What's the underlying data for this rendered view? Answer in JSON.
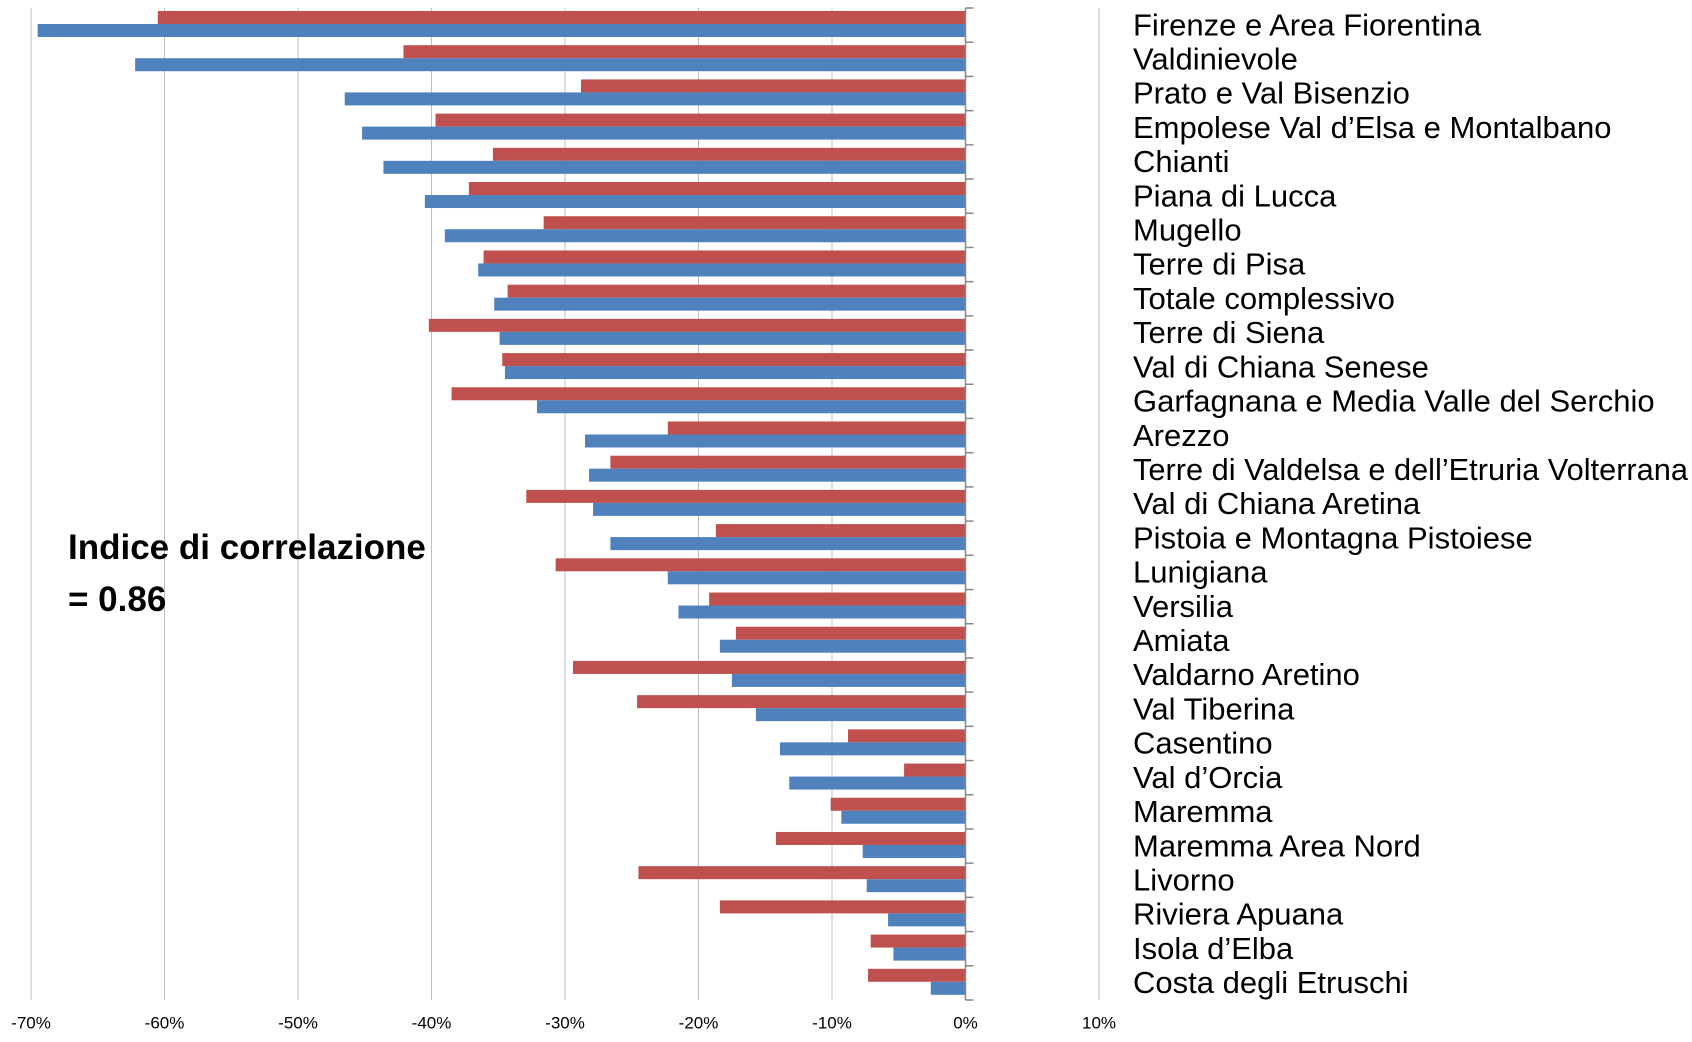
{
  "chart_data": {
    "type": "hbar",
    "annotation": "Indice di correlazione = 0.86",
    "categories": [
      "Firenze e Area Fiorentina",
      "Valdinievole",
      "Prato e Val Bisenzio",
      "Empolese Val d’Elsa e Montalbano",
      "Chianti",
      "Piana di Lucca",
      "Mugello",
      "Terre di Pisa",
      "Totale complessivo",
      "Terre di Siena",
      "Val di Chiana Senese",
      "Garfagnana e Media Valle del Serchio",
      "Arezzo",
      "Terre di Valdelsa e dell’Etruria Volterrana",
      "Val di Chiana Aretina",
      "Pistoia e Montagna Pistoiese",
      "Lunigiana",
      "Versilia",
      "Amiata",
      "Valdarno Aretino",
      "Val Tiberina",
      "Casentino",
      "Val d’Orcia",
      "Maremma",
      "Maremma Area Nord",
      "Livorno",
      "Riviera Apuana",
      "Isola d’Elba",
      "Costa degli Etruschi"
    ],
    "series": [
      {
        "color": "#c0504d",
        "values": [
          -60.5,
          -42.1,
          -28.8,
          -39.7,
          -35.4,
          -37.2,
          -31.6,
          -36.1,
          -34.3,
          -40.2,
          -34.7,
          -38.5,
          -22.3,
          -26.6,
          -32.9,
          -18.7,
          -30.7,
          -19.2,
          -17.2,
          -29.4,
          -24.6,
          -8.8,
          -4.6,
          -10.1,
          -14.2,
          -24.5,
          -18.4,
          -7.1,
          -7.3
        ]
      },
      {
        "color": "#4f81bd",
        "values": [
          -69.5,
          -62.2,
          -46.5,
          -45.2,
          -43.6,
          -40.5,
          -39.0,
          -36.5,
          -35.3,
          -34.9,
          -34.5,
          -32.1,
          -28.5,
          -28.2,
          -27.9,
          -26.6,
          -22.3,
          -21.5,
          -18.4,
          -17.5,
          -15.7,
          -13.9,
          -13.2,
          -9.3,
          -7.7,
          -7.4,
          -5.8,
          -5.4,
          -2.6
        ]
      }
    ],
    "xlim": [
      -70,
      10
    ],
    "xticks": [
      {
        "value": -70,
        "label": "-70%"
      },
      {
        "value": -60,
        "label": "-60%"
      },
      {
        "value": -50,
        "label": "-50%"
      },
      {
        "value": -40,
        "label": "-40%"
      },
      {
        "value": -30,
        "label": "-30%"
      },
      {
        "value": -20,
        "label": "-20%"
      },
      {
        "value": -10,
        "label": "-10%"
      },
      {
        "value": 0,
        "label": "0%"
      },
      {
        "value": 10,
        "label": "10%"
      }
    ],
    "grid": true
  }
}
